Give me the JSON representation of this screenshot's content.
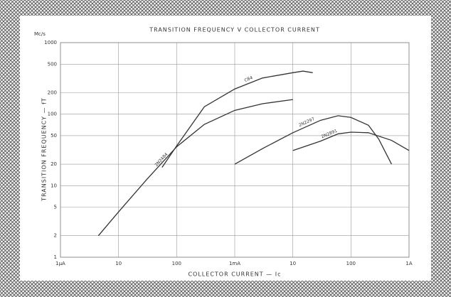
{
  "chart_data": {
    "type": "line",
    "title": "TRANSITION FREQUENCY V COLLECTOR CURRENT",
    "y_unit": "Mc/s",
    "y_label": "TRANSITION FREQUENCY — fT",
    "x_label": "COLLECTOR CURRENT — Ic",
    "log_x": true,
    "log_y": true,
    "grid": true,
    "xlim": [
      1e-06,
      1
    ],
    "xticks": [
      {
        "value": 1e-06,
        "label": "1μA"
      },
      {
        "value": 1e-05,
        "label": "10"
      },
      {
        "value": 0.0001,
        "label": "100"
      },
      {
        "value": 0.001,
        "label": "1mA"
      },
      {
        "value": 0.01,
        "label": "10"
      },
      {
        "value": 0.1,
        "label": "100"
      },
      {
        "value": 1,
        "label": "1A"
      }
    ],
    "ylim": [
      1,
      1000
    ],
    "yticks": [
      1,
      2,
      5,
      10,
      20,
      50,
      100,
      200,
      500,
      1000
    ],
    "series": [
      {
        "name": "2N2484",
        "color": "#333333",
        "x": [
          4.5e-06,
          1e-05,
          3e-05,
          0.0001,
          0.0003,
          0.001,
          0.003,
          0.01
        ],
        "values": [
          2,
          4.3,
          12,
          35,
          72,
          113,
          140,
          160
        ]
      },
      {
        "name": "C84",
        "color": "#333333",
        "x": [
          5.6e-05,
          0.0001,
          0.0003,
          0.001,
          0.003,
          0.01,
          0.015,
          0.022
        ],
        "values": [
          18,
          36,
          127,
          225,
          320,
          380,
          400,
          380
        ]
      },
      {
        "name": "2N2297",
        "color": "#333333",
        "x": [
          0.001,
          0.003,
          0.01,
          0.03,
          0.06,
          0.1,
          0.2,
          0.3,
          0.5
        ],
        "values": [
          20,
          33,
          55,
          82,
          95,
          90,
          70,
          45,
          20
        ]
      },
      {
        "name": "2N2891",
        "color": "#333333",
        "x": [
          0.01,
          0.03,
          0.06,
          0.1,
          0.2,
          0.5,
          1
        ],
        "values": [
          31,
          42,
          53,
          56,
          55,
          43,
          31
        ]
      }
    ]
  }
}
